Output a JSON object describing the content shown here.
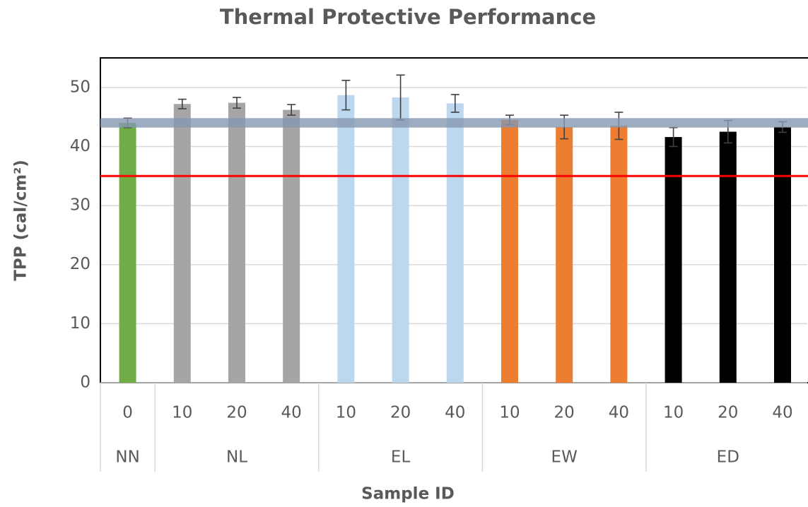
{
  "chart_data": {
    "type": "bar",
    "title": "Thermal Protective Performance",
    "x_label": "Sample ID",
    "y_label": "TPP (cal/cm²)",
    "ylim": [
      0,
      55
    ],
    "yticks": [
      0,
      10,
      20,
      30,
      40,
      50
    ],
    "grid": true,
    "groups": [
      {
        "name": "NN",
        "color": "#70ad47",
        "categories": [
          "0"
        ],
        "values": [
          44.0
        ],
        "errors": [
          0.8
        ]
      },
      {
        "name": "NL",
        "color": "#a5a5a5",
        "categories": [
          "10",
          "20",
          "40"
        ],
        "values": [
          47.2,
          47.4,
          46.2
        ],
        "errors": [
          0.8,
          0.9,
          0.9
        ]
      },
      {
        "name": "EL",
        "color": "#bdd7ee",
        "categories": [
          "10",
          "20",
          "40"
        ],
        "values": [
          48.7,
          48.3,
          47.3
        ],
        "errors": [
          2.5,
          3.8,
          1.5
        ]
      },
      {
        "name": "EW",
        "color": "#ed7d31",
        "categories": [
          "10",
          "20",
          "40"
        ],
        "values": [
          44.5,
          43.3,
          43.5
        ],
        "errors": [
          0.8,
          2.0,
          2.3
        ]
      },
      {
        "name": "ED",
        "color": "#000000",
        "categories": [
          "10",
          "20",
          "40"
        ],
        "values": [
          41.6,
          42.5,
          43.3
        ],
        "errors": [
          1.6,
          1.9,
          0.9
        ]
      }
    ],
    "reference_lines": [
      {
        "value": 35,
        "color": "#ff0000"
      }
    ],
    "bands": [
      {
        "from": 43.2,
        "to": 44.8,
        "color": "#8497b0"
      }
    ]
  }
}
